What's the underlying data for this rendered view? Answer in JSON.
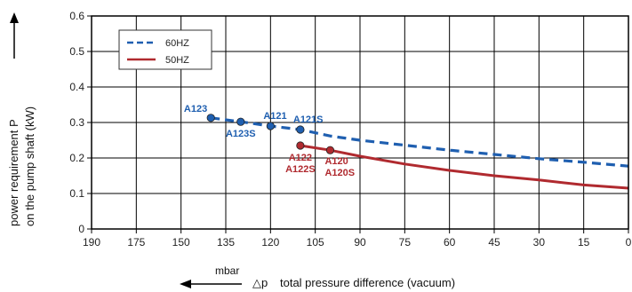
{
  "chart_data": {
    "type": "line",
    "xlabel": "total pressure difference (vacuum)",
    "x_symbol": "△p",
    "x_unit": "mbar",
    "ylabel_line1": "power requirement P",
    "ylabel_line2": "on the pump shaft (kW)",
    "xlim": [
      190,
      0
    ],
    "ylim": [
      0,
      0.6
    ],
    "x_ticks": [
      "190",
      "175",
      "150",
      "135",
      "120",
      "105",
      "90",
      "75",
      "60",
      "45",
      "30",
      "15",
      "0"
    ],
    "y_ticks": [
      "0",
      "0.1",
      "0.2",
      "0.3",
      "0.4",
      "0.5",
      "0.6"
    ],
    "grid": true,
    "legend_placement": "top-left",
    "series": [
      {
        "name": "60HZ",
        "color": "#1f5fb0",
        "style": "dashed",
        "points": [
          {
            "x": 140,
            "y": 0.313
          },
          {
            "x": 130,
            "y": 0.302
          },
          {
            "x": 120,
            "y": 0.29
          },
          {
            "x": 110,
            "y": 0.28
          },
          {
            "x": 100,
            "y": 0.262
          },
          {
            "x": 90,
            "y": 0.25
          },
          {
            "x": 75,
            "y": 0.236
          },
          {
            "x": 60,
            "y": 0.222
          },
          {
            "x": 45,
            "y": 0.21
          },
          {
            "x": 30,
            "y": 0.198
          },
          {
            "x": 15,
            "y": 0.188
          },
          {
            "x": 0,
            "y": 0.177
          }
        ]
      },
      {
        "name": "50HZ",
        "color": "#b02a2f",
        "style": "solid",
        "points": [
          {
            "x": 110,
            "y": 0.235
          },
          {
            "x": 100,
            "y": 0.222
          },
          {
            "x": 90,
            "y": 0.205
          },
          {
            "x": 75,
            "y": 0.183
          },
          {
            "x": 60,
            "y": 0.165
          },
          {
            "x": 45,
            "y": 0.15
          },
          {
            "x": 30,
            "y": 0.138
          },
          {
            "x": 15,
            "y": 0.124
          },
          {
            "x": 0,
            "y": 0.115
          }
        ]
      }
    ],
    "markers": [
      {
        "x": 140,
        "y": 0.313,
        "color": "#1f5fb0",
        "label": "A123",
        "anchor": "end",
        "pos": "upper-left"
      },
      {
        "x": 130,
        "y": 0.302,
        "color": "#1f5fb0",
        "label": "A123S",
        "anchor": "middle",
        "pos": "below"
      },
      {
        "x": 120,
        "y": 0.29,
        "color": "#1f5fb0",
        "label": "A121",
        "anchor": "start",
        "pos": "upper-right"
      },
      {
        "x": 110,
        "y": 0.28,
        "color": "#1f5fb0",
        "label": "A121S",
        "anchor": "start",
        "pos": "upper-right"
      },
      {
        "x": 110,
        "y": 0.235,
        "color": "#b02a2f",
        "label": "A122\nA122S",
        "anchor": "middle",
        "pos": "below"
      },
      {
        "x": 100,
        "y": 0.222,
        "color": "#b02a2f",
        "label": "A120\nA120S",
        "anchor": "start",
        "pos": "below"
      }
    ]
  }
}
